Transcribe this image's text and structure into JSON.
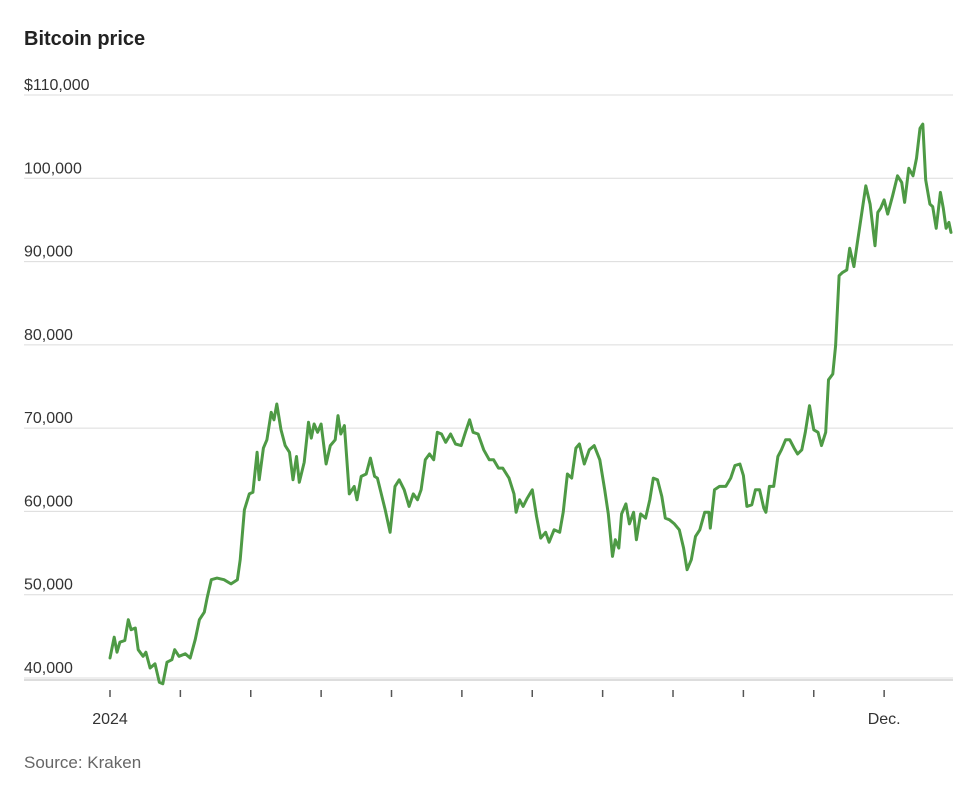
{
  "chart_data": {
    "type": "line",
    "title": "Bitcoin price",
    "source": "Source: Kraken",
    "color": "#4e9a45",
    "x": [
      0,
      0.06,
      0.1,
      0.14,
      0.21,
      0.26,
      0.3,
      0.36,
      0.4,
      0.47,
      0.51,
      0.57,
      0.64,
      0.7,
      0.75,
      0.81,
      0.88,
      0.92,
      0.98,
      1.07,
      1.14,
      1.21,
      1.27,
      1.34,
      1.38,
      1.44,
      1.52,
      1.62,
      1.72,
      1.81,
      1.85,
      1.91,
      1.98,
      2.03,
      2.09,
      2.12,
      2.18,
      2.23,
      2.29,
      2.33,
      2.37,
      2.43,
      2.49,
      2.55,
      2.6,
      2.65,
      2.69,
      2.76,
      2.82,
      2.86,
      2.9,
      2.95,
      3.0,
      3.07,
      3.13,
      3.2,
      3.24,
      3.28,
      3.33,
      3.4,
      3.47,
      3.51,
      3.57,
      3.64,
      3.7,
      3.76,
      3.8,
      3.85,
      3.91,
      3.98,
      4.05,
      4.11,
      4.18,
      4.25,
      4.31,
      4.37,
      4.42,
      4.48,
      4.54,
      4.6,
      4.65,
      4.71,
      4.77,
      4.84,
      4.91,
      4.99,
      5.05,
      5.11,
      5.16,
      5.23,
      5.31,
      5.39,
      5.45,
      5.52,
      5.58,
      5.67,
      5.74,
      5.77,
      5.82,
      5.87,
      5.93,
      6.0,
      6.06,
      6.12,
      6.19,
      6.24,
      6.31,
      6.39,
      6.44,
      6.5,
      6.56,
      6.62,
      6.67,
      6.74,
      6.81,
      6.88,
      6.96,
      7.03,
      7.08,
      7.14,
      7.18,
      7.23,
      7.27,
      7.33,
      7.38,
      7.44,
      7.48,
      7.54,
      7.61,
      7.67,
      7.72,
      7.78,
      7.84,
      7.89,
      7.95,
      8.02,
      8.09,
      8.15,
      8.2,
      8.26,
      8.32,
      8.38,
      8.45,
      8.51,
      8.53,
      8.59,
      8.66,
      8.75,
      8.82,
      8.88,
      8.95,
      9.0,
      9.05,
      9.12,
      9.17,
      9.23,
      9.29,
      9.32,
      9.37,
      9.43,
      9.49,
      9.54,
      9.6,
      9.66,
      9.72,
      9.77,
      9.83,
      9.88,
      9.94,
      10.0,
      10.06,
      10.11,
      10.17,
      10.21,
      10.27,
      10.31,
      10.36,
      10.41,
      10.47,
      10.51,
      10.57,
      10.62,
      10.68,
      10.74,
      10.8,
      10.87,
      10.91,
      10.95,
      11.0,
      11.05,
      11.12,
      11.19,
      11.25,
      11.29,
      11.35,
      11.41,
      11.46,
      11.51,
      11.55,
      11.59,
      11.65,
      11.69,
      11.74,
      11.8,
      11.84,
      11.88,
      11.92,
      11.95
    ],
    "values": [
      42400,
      44900,
      43100,
      44300,
      44500,
      47000,
      45800,
      46000,
      43400,
      42600,
      43100,
      41200,
      41700,
      39500,
      39300,
      41900,
      42200,
      43400,
      42600,
      42900,
      42400,
      44600,
      47000,
      47900,
      49600,
      51800,
      52000,
      51800,
      51300,
      51800,
      54200,
      60200,
      62100,
      62300,
      67100,
      63800,
      67600,
      68600,
      71900,
      71000,
      72900,
      69800,
      67900,
      67100,
      63800,
      66600,
      63500,
      65900,
      70700,
      68800,
      70500,
      69500,
      70500,
      65700,
      67900,
      68600,
      71500,
      69300,
      70300,
      62100,
      63000,
      61400,
      64200,
      64500,
      66400,
      64200,
      64000,
      62300,
      60200,
      57500,
      63000,
      63800,
      62600,
      60600,
      62100,
      61400,
      62600,
      66200,
      66900,
      66200,
      69500,
      69300,
      68300,
      69300,
      68100,
      67900,
      69500,
      71000,
      69500,
      69300,
      67400,
      66200,
      66200,
      65200,
      65200,
      64000,
      62100,
      59900,
      61400,
      60600,
      61600,
      62600,
      59400,
      56800,
      57500,
      56300,
      57800,
      57500,
      59900,
      64500,
      64000,
      67600,
      68100,
      65700,
      67400,
      67900,
      66200,
      62600,
      59700,
      54600,
      56600,
      55600,
      59700,
      60900,
      58500,
      59900,
      56600,
      59700,
      59200,
      61400,
      64000,
      63800,
      61800,
      59200,
      59000,
      58500,
      57800,
      55600,
      53000,
      54200,
      57000,
      57800,
      59900,
      59900,
      58000,
      62600,
      63000,
      63000,
      64000,
      65500,
      65700,
      64300,
      60600,
      60800,
      62600,
      62600,
      60400,
      59900,
      63000,
      63000,
      66600,
      67400,
      68600,
      68600,
      67600,
      66900,
      67400,
      69500,
      72700,
      69800,
      69500,
      67900,
      69500,
      75800,
      76500,
      79900,
      88300,
      88700,
      89000,
      91600,
      89400,
      92300,
      95700,
      99100,
      96900,
      91900,
      95900,
      96400,
      97400,
      95700,
      97900,
      100300,
      99500,
      97100,
      101200,
      100300,
      102400,
      106000,
      106500,
      99800,
      96900,
      96600,
      94000,
      98300,
      96400,
      94000,
      94700,
      93500
    ],
    "xlim": [
      0,
      11.95
    ],
    "xticks": [
      {
        "value": 0,
        "label": "2024"
      },
      {
        "value": 1
      },
      {
        "value": 2
      },
      {
        "value": 3
      },
      {
        "value": 4
      },
      {
        "value": 5
      },
      {
        "value": 6
      },
      {
        "value": 7
      },
      {
        "value": 8
      },
      {
        "value": 9
      },
      {
        "value": 10
      },
      {
        "value": 11,
        "label": "Dec."
      }
    ],
    "ylim": [
      40000,
      110000
    ],
    "yticks": [
      {
        "value": 40000,
        "label": "40,000"
      },
      {
        "value": 50000,
        "label": "50,000"
      },
      {
        "value": 60000,
        "label": "60,000"
      },
      {
        "value": 70000,
        "label": "70,000"
      },
      {
        "value": 80000,
        "label": "80,000"
      },
      {
        "value": 90000,
        "label": "90,000"
      },
      {
        "value": 100000,
        "label": "100,000"
      },
      {
        "value": 110000,
        "label": "$110,000"
      }
    ],
    "grid": true
  }
}
